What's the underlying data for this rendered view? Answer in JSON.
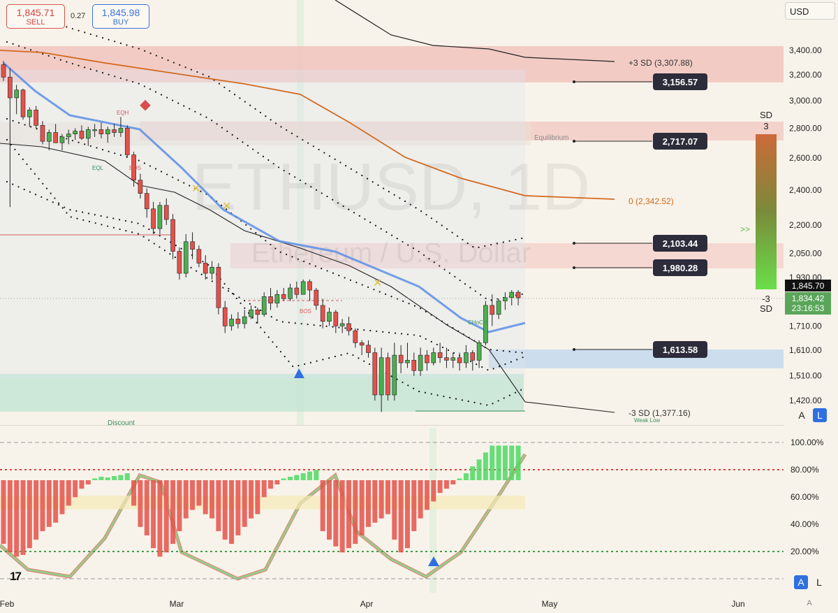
{
  "header": {
    "sell_price": "1,845.71",
    "sell_label": "SELL",
    "spread": "0.27",
    "buy_price": "1,845.98",
    "buy_label": "BUY",
    "currency": "USD"
  },
  "watermark": {
    "symbol": "ETHUSD, 1D",
    "name": "Ethereum / U.S. Dollar"
  },
  "controls": {
    "a": "A",
    "l": "L",
    "a_small": "A"
  },
  "colors": {
    "background": "#f8f3ea",
    "up": "#4caf50",
    "down": "#e4514b",
    "sd_upper_band": "#f1bdb8",
    "sd_lower_band": "#b9d3ee",
    "discount_zone": "#bfe3d3",
    "ema_fast": "#5b8ee6",
    "orange_line": "#d2691e",
    "accent_label": "#2c2c3a"
  },
  "chart_data": [
    {
      "type": "candlestick",
      "title": "ETHUSD, 1D",
      "subtitle": "Ethereum / U.S. Dollar",
      "x_ticks": [
        "Feb",
        "Mar",
        "Apr",
        "May",
        "Jun"
      ],
      "y_ticks": [
        3400,
        3200,
        3000,
        2800,
        2600,
        2400,
        2200,
        2050,
        1930,
        1710,
        1610,
        1510,
        1420
      ],
      "y_tick_labels": [
        "3,400.00",
        "3,200.00",
        "3,000.00",
        "2,800.00",
        "2,600.00",
        "2,400.00",
        "2,200.00",
        "2,050.00",
        "1,930.00",
        "1,710.00",
        "1,610.00",
        "1,510.00",
        "1,420.00"
      ],
      "price_tags": [
        {
          "value": 3156.57,
          "label": "3,156.57"
        },
        {
          "value": 2717.07,
          "label": "2,717.07"
        },
        {
          "value": 2103.44,
          "label": "2,103.44"
        },
        {
          "value": 1980.28,
          "label": "1,980.28"
        },
        {
          "value": 1613.58,
          "label": "1,613.58"
        }
      ],
      "level_annotations": [
        {
          "value": 3307.88,
          "label": "+3 SD (3,307.88)"
        },
        {
          "value": 2342.52,
          "label": "0 (2,342.52)"
        },
        {
          "value": 1377.16,
          "label": "-3 SD (1,377.16)"
        }
      ],
      "last_price": {
        "value": 1845.7,
        "label": "1,845.70"
      },
      "last_close": {
        "value": 1834.42,
        "label": "1,834.42",
        "countdown": "23:16:53"
      },
      "zone_labels": [
        "Equilibrium",
        "Discount",
        "Weak Low"
      ],
      "structure_labels": [
        "EQH",
        "EQL",
        "BOS",
        "BOS",
        "CHoCH"
      ],
      "sd_scale": {
        "title": "SD",
        "top": "3",
        "bottom": "-3",
        "bottom_unit": "SD",
        "arrow": ">>"
      },
      "ohlc": [
        [
          3280,
          3310,
          3150,
          3180
        ],
        [
          3180,
          3250,
          2300,
          3020
        ],
        [
          3020,
          3120,
          2900,
          3080
        ],
        [
          3080,
          3090,
          2860,
          2880
        ],
        [
          2880,
          2950,
          2810,
          2930
        ],
        [
          2930,
          2960,
          2800,
          2820
        ],
        [
          2820,
          2850,
          2690,
          2710
        ],
        [
          2710,
          2790,
          2650,
          2770
        ],
        [
          2770,
          2830,
          2700,
          2700
        ],
        [
          2700,
          2760,
          2650,
          2740
        ],
        [
          2740,
          2790,
          2690,
          2760
        ],
        [
          2760,
          2800,
          2720,
          2780
        ],
        [
          2780,
          2820,
          2720,
          2730
        ],
        [
          2730,
          2810,
          2680,
          2790
        ],
        [
          2790,
          2830,
          2740,
          2790
        ],
        [
          2790,
          2840,
          2730,
          2760
        ],
        [
          2760,
          2810,
          2700,
          2790
        ],
        [
          2790,
          2830,
          2740,
          2770
        ],
        [
          2770,
          2880,
          2740,
          2800
        ],
        [
          2800,
          2820,
          2600,
          2620
        ],
        [
          2620,
          2640,
          2420,
          2460
        ],
        [
          2460,
          2500,
          2350,
          2380
        ],
        [
          2380,
          2410,
          2240,
          2290
        ],
        [
          2290,
          2330,
          2150,
          2180
        ],
        [
          2180,
          2330,
          2150,
          2310
        ],
        [
          2310,
          2350,
          2200,
          2230
        ],
        [
          2230,
          2260,
          2020,
          2060
        ],
        [
          2060,
          2080,
          1920,
          1950
        ],
        [
          1950,
          2150,
          1930,
          2110
        ],
        [
          2110,
          2160,
          2020,
          2070
        ],
        [
          2070,
          2090,
          1980,
          2000
        ],
        [
          2000,
          2040,
          1920,
          1950
        ],
        [
          1950,
          2010,
          1920,
          1980
        ],
        [
          1980,
          2000,
          1760,
          1790
        ],
        [
          1790,
          1820,
          1680,
          1710
        ],
        [
          1710,
          1760,
          1690,
          1740
        ],
        [
          1740,
          1770,
          1700,
          1720
        ],
        [
          1720,
          1780,
          1700,
          1750
        ],
        [
          1750,
          1800,
          1740,
          1780
        ],
        [
          1780,
          1790,
          1720,
          1760
        ],
        [
          1760,
          1860,
          1750,
          1840
        ],
        [
          1840,
          1880,
          1780,
          1810
        ],
        [
          1810,
          1870,
          1790,
          1850
        ],
        [
          1850,
          1880,
          1820,
          1830
        ],
        [
          1830,
          1900,
          1820,
          1880
        ],
        [
          1880,
          1910,
          1830,
          1850
        ],
        [
          1850,
          1920,
          1850,
          1910
        ],
        [
          1910,
          1920,
          1820,
          1870
        ],
        [
          1870,
          1880,
          1780,
          1800
        ],
        [
          1800,
          1830,
          1700,
          1730
        ],
        [
          1730,
          1790,
          1710,
          1770
        ],
        [
          1770,
          1780,
          1680,
          1710
        ],
        [
          1710,
          1740,
          1680,
          1720
        ],
        [
          1720,
          1750,
          1670,
          1690
        ],
        [
          1690,
          1700,
          1620,
          1640
        ],
        [
          1640,
          1650,
          1590,
          1630
        ],
        [
          1630,
          1650,
          1580,
          1600
        ],
        [
          1600,
          1620,
          1420,
          1440
        ],
        [
          1440,
          1620,
          1380,
          1580
        ],
        [
          1580,
          1600,
          1420,
          1440
        ],
        [
          1440,
          1640,
          1420,
          1590
        ],
        [
          1590,
          1630,
          1520,
          1560
        ],
        [
          1560,
          1640,
          1540,
          1570
        ],
        [
          1570,
          1600,
          1510,
          1530
        ],
        [
          1530,
          1620,
          1510,
          1590
        ],
        [
          1590,
          1610,
          1530,
          1560
        ],
        [
          1560,
          1620,
          1550,
          1600
        ],
        [
          1600,
          1640,
          1560,
          1580
        ],
        [
          1580,
          1620,
          1540,
          1570
        ],
        [
          1570,
          1600,
          1540,
          1580
        ],
        [
          1580,
          1600,
          1530,
          1560
        ],
        [
          1560,
          1630,
          1540,
          1600
        ],
        [
          1600,
          1610,
          1530,
          1570
        ],
        [
          1570,
          1650,
          1540,
          1640
        ],
        [
          1640,
          1820,
          1630,
          1800
        ],
        [
          1800,
          1850,
          1710,
          1760
        ],
        [
          1760,
          1830,
          1740,
          1820
        ],
        [
          1820,
          1860,
          1780,
          1835
        ],
        [
          1835,
          1870,
          1800,
          1860
        ],
        [
          1860,
          1870,
          1800,
          1834.42
        ]
      ],
      "oscillator": {
        "y_ticks": [
          "100.00%",
          "80.00%",
          "60.00%",
          "40.00%",
          "20.00%"
        ],
        "levels": [
          80,
          20
        ],
        "histogram": [
          -75,
          -85,
          -90,
          -88,
          -80,
          -70,
          -60,
          -55,
          -50,
          -40,
          -30,
          -20,
          -10,
          -5,
          5,
          10,
          8,
          12,
          15,
          20,
          -30,
          -55,
          -65,
          -80,
          -90,
          -85,
          -75,
          -60,
          -45,
          -35,
          -30,
          -40,
          -45,
          -60,
          -70,
          -75,
          -65,
          -55,
          -45,
          -40,
          -20,
          -10,
          -5,
          5,
          10,
          15,
          20,
          25,
          30,
          -60,
          -70,
          -78,
          -85,
          -80,
          -75,
          -65,
          -55,
          -50,
          -45,
          -40,
          -70,
          -85,
          -80,
          -60,
          -45,
          -35,
          -25,
          -15,
          -10,
          -5,
          5,
          20,
          40,
          60,
          80,
          100,
          100,
          100,
          100,
          100
        ]
      }
    }
  ]
}
